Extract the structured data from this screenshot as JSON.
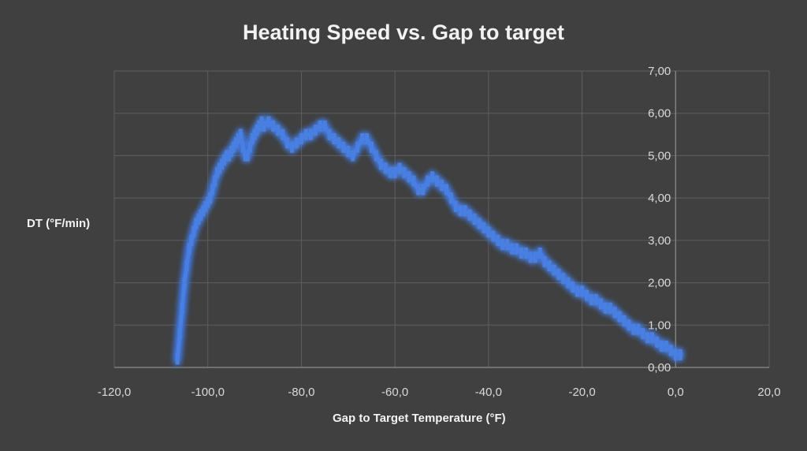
{
  "chart_data": {
    "type": "scatter",
    "title": "Heating Speed vs. Gap to target",
    "xlabel": "Gap to Target Temperature (°F)",
    "ylabel": "DT (°F/min)",
    "xlim": [
      -120,
      20
    ],
    "ylim": [
      0,
      7
    ],
    "x_ticks": [
      "-120,0",
      "-100,0",
      "-80,0",
      "-60,0",
      "-40,0",
      "-20,0",
      "0,0",
      "20,0"
    ],
    "y_ticks": [
      "0,00",
      "1,00",
      "2,00",
      "3,00",
      "4,00",
      "5,00",
      "6,00",
      "7,00"
    ],
    "grid": true,
    "series_color": "#4a7fe0",
    "glow_color": "#3b6ed8",
    "points": [
      [
        -106.5,
        0.2
      ],
      [
        -106.0,
        0.8
      ],
      [
        -105.5,
        1.4
      ],
      [
        -105.0,
        2.0
      ],
      [
        -104.5,
        2.4
      ],
      [
        -104.0,
        2.8
      ],
      [
        -103.5,
        3.0
      ],
      [
        -103.0,
        3.2
      ],
      [
        -102.5,
        3.4
      ],
      [
        -102.0,
        3.5
      ],
      [
        -101.5,
        3.6
      ],
      [
        -101.0,
        3.7
      ],
      [
        -100.5,
        3.8
      ],
      [
        -100.0,
        3.9
      ],
      [
        -99.5,
        4.0
      ],
      [
        -99.0,
        4.2
      ],
      [
        -98.5,
        4.4
      ],
      [
        -98.0,
        4.6
      ],
      [
        -97.5,
        4.7
      ],
      [
        -97.0,
        4.8
      ],
      [
        -96.5,
        4.9
      ],
      [
        -96.0,
        5.0
      ],
      [
        -95.5,
        5.0
      ],
      [
        -95.0,
        5.1
      ],
      [
        -94.5,
        5.2
      ],
      [
        -94.0,
        5.3
      ],
      [
        -93.5,
        5.4
      ],
      [
        -93.0,
        5.5
      ],
      [
        -92.5,
        5.2
      ],
      [
        -92.0,
        5.0
      ],
      [
        -91.5,
        5.0
      ],
      [
        -91.0,
        5.2
      ],
      [
        -90.5,
        5.4
      ],
      [
        -90.0,
        5.5
      ],
      [
        -89.5,
        5.6
      ],
      [
        -89.0,
        5.7
      ],
      [
        -88.5,
        5.8
      ],
      [
        -88.0,
        5.7
      ],
      [
        -87.0,
        5.8
      ],
      [
        -86.0,
        5.7
      ],
      [
        -85.0,
        5.6
      ],
      [
        -84.0,
        5.5
      ],
      [
        -83.0,
        5.3
      ],
      [
        -82.0,
        5.2
      ],
      [
        -81.0,
        5.3
      ],
      [
        -80.0,
        5.4
      ],
      [
        -79.0,
        5.5
      ],
      [
        -78.0,
        5.5
      ],
      [
        -77.0,
        5.6
      ],
      [
        -76.0,
        5.7
      ],
      [
        -75.0,
        5.7
      ],
      [
        -74.0,
        5.5
      ],
      [
        -73.0,
        5.4
      ],
      [
        -72.0,
        5.3
      ],
      [
        -71.0,
        5.2
      ],
      [
        -70.0,
        5.1
      ],
      [
        -69.0,
        5.0
      ],
      [
        -68.0,
        5.2
      ],
      [
        -67.0,
        5.4
      ],
      [
        -66.0,
        5.4
      ],
      [
        -65.0,
        5.2
      ],
      [
        -64.0,
        5.0
      ],
      [
        -63.0,
        4.8
      ],
      [
        -62.0,
        4.7
      ],
      [
        -61.0,
        4.6
      ],
      [
        -60.0,
        4.6
      ],
      [
        -59.0,
        4.7
      ],
      [
        -58.0,
        4.6
      ],
      [
        -57.0,
        4.5
      ],
      [
        -56.0,
        4.4
      ],
      [
        -55.0,
        4.2
      ],
      [
        -54.0,
        4.2
      ],
      [
        -53.0,
        4.4
      ],
      [
        -52.0,
        4.5
      ],
      [
        -51.0,
        4.4
      ],
      [
        -50.0,
        4.3
      ],
      [
        -49.0,
        4.2
      ],
      [
        -48.0,
        4.0
      ],
      [
        -47.0,
        3.8
      ],
      [
        -46.0,
        3.7
      ],
      [
        -45.0,
        3.7
      ],
      [
        -44.0,
        3.6
      ],
      [
        -43.0,
        3.5
      ],
      [
        -42.0,
        3.4
      ],
      [
        -41.0,
        3.3
      ],
      [
        -40.0,
        3.2
      ],
      [
        -39.0,
        3.1
      ],
      [
        -38.0,
        3.0
      ],
      [
        -37.0,
        2.9
      ],
      [
        -36.0,
        2.9
      ],
      [
        -35.0,
        2.8
      ],
      [
        -34.0,
        2.8
      ],
      [
        -33.0,
        2.7
      ],
      [
        -32.0,
        2.7
      ],
      [
        -31.0,
        2.6
      ],
      [
        -30.0,
        2.6
      ],
      [
        -29.0,
        2.7
      ],
      [
        -28.0,
        2.5
      ],
      [
        -27.0,
        2.4
      ],
      [
        -26.0,
        2.3
      ],
      [
        -25.0,
        2.2
      ],
      [
        -24.0,
        2.1
      ],
      [
        -23.0,
        2.0
      ],
      [
        -22.0,
        1.9
      ],
      [
        -21.0,
        1.8
      ],
      [
        -20.0,
        1.8
      ],
      [
        -19.0,
        1.7
      ],
      [
        -18.0,
        1.6
      ],
      [
        -17.0,
        1.6
      ],
      [
        -16.0,
        1.5
      ],
      [
        -15.0,
        1.4
      ],
      [
        -14.0,
        1.4
      ],
      [
        -13.0,
        1.3
      ],
      [
        -12.0,
        1.2
      ],
      [
        -11.0,
        1.1
      ],
      [
        -10.0,
        1.0
      ],
      [
        -9.0,
        0.9
      ],
      [
        -8.0,
        0.9
      ],
      [
        -7.0,
        0.8
      ],
      [
        -6.0,
        0.7
      ],
      [
        -5.0,
        0.7
      ],
      [
        -4.0,
        0.6
      ],
      [
        -3.0,
        0.5
      ],
      [
        -2.0,
        0.5
      ],
      [
        -1.0,
        0.4
      ],
      [
        0.0,
        0.3
      ],
      [
        1.0,
        0.3
      ]
    ]
  }
}
